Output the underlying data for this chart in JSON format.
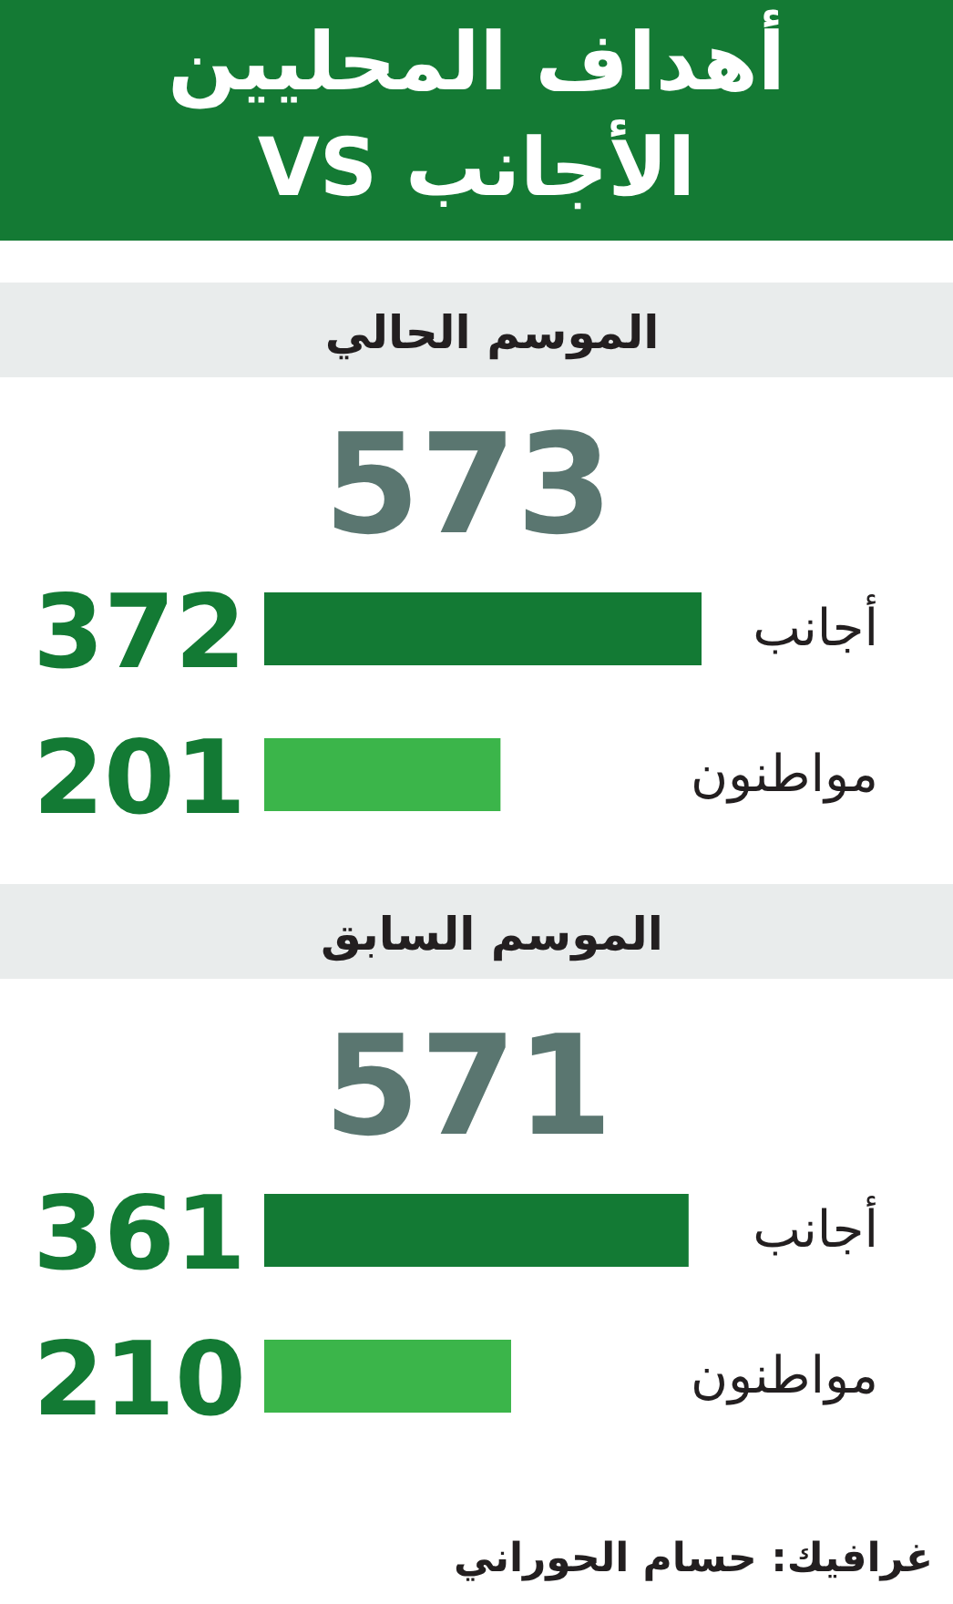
{
  "chart_data": [
    {
      "type": "other",
      "title": "أهداف المحليين VS الأجانب"
    },
    {
      "type": "bar",
      "orientation": "horizontal",
      "title": "الموسم الحالي",
      "subtitle": "573",
      "categories": [
        "أجانب",
        "مواطنون"
      ],
      "values": [
        372,
        201
      ],
      "colors": [
        "#137a34",
        "#3bb54a"
      ],
      "data_labels": true
    },
    {
      "type": "bar",
      "orientation": "horizontal",
      "title": "الموسم السابق",
      "subtitle": "571",
      "categories": [
        "أجانب",
        "مواطنون"
      ],
      "values": [
        361,
        210
      ],
      "colors": [
        "#137a34",
        "#3bb54a"
      ],
      "data_labels": true,
      "annotations": [
        "غرافيك: حسام الحوراني"
      ]
    }
  ]
}
